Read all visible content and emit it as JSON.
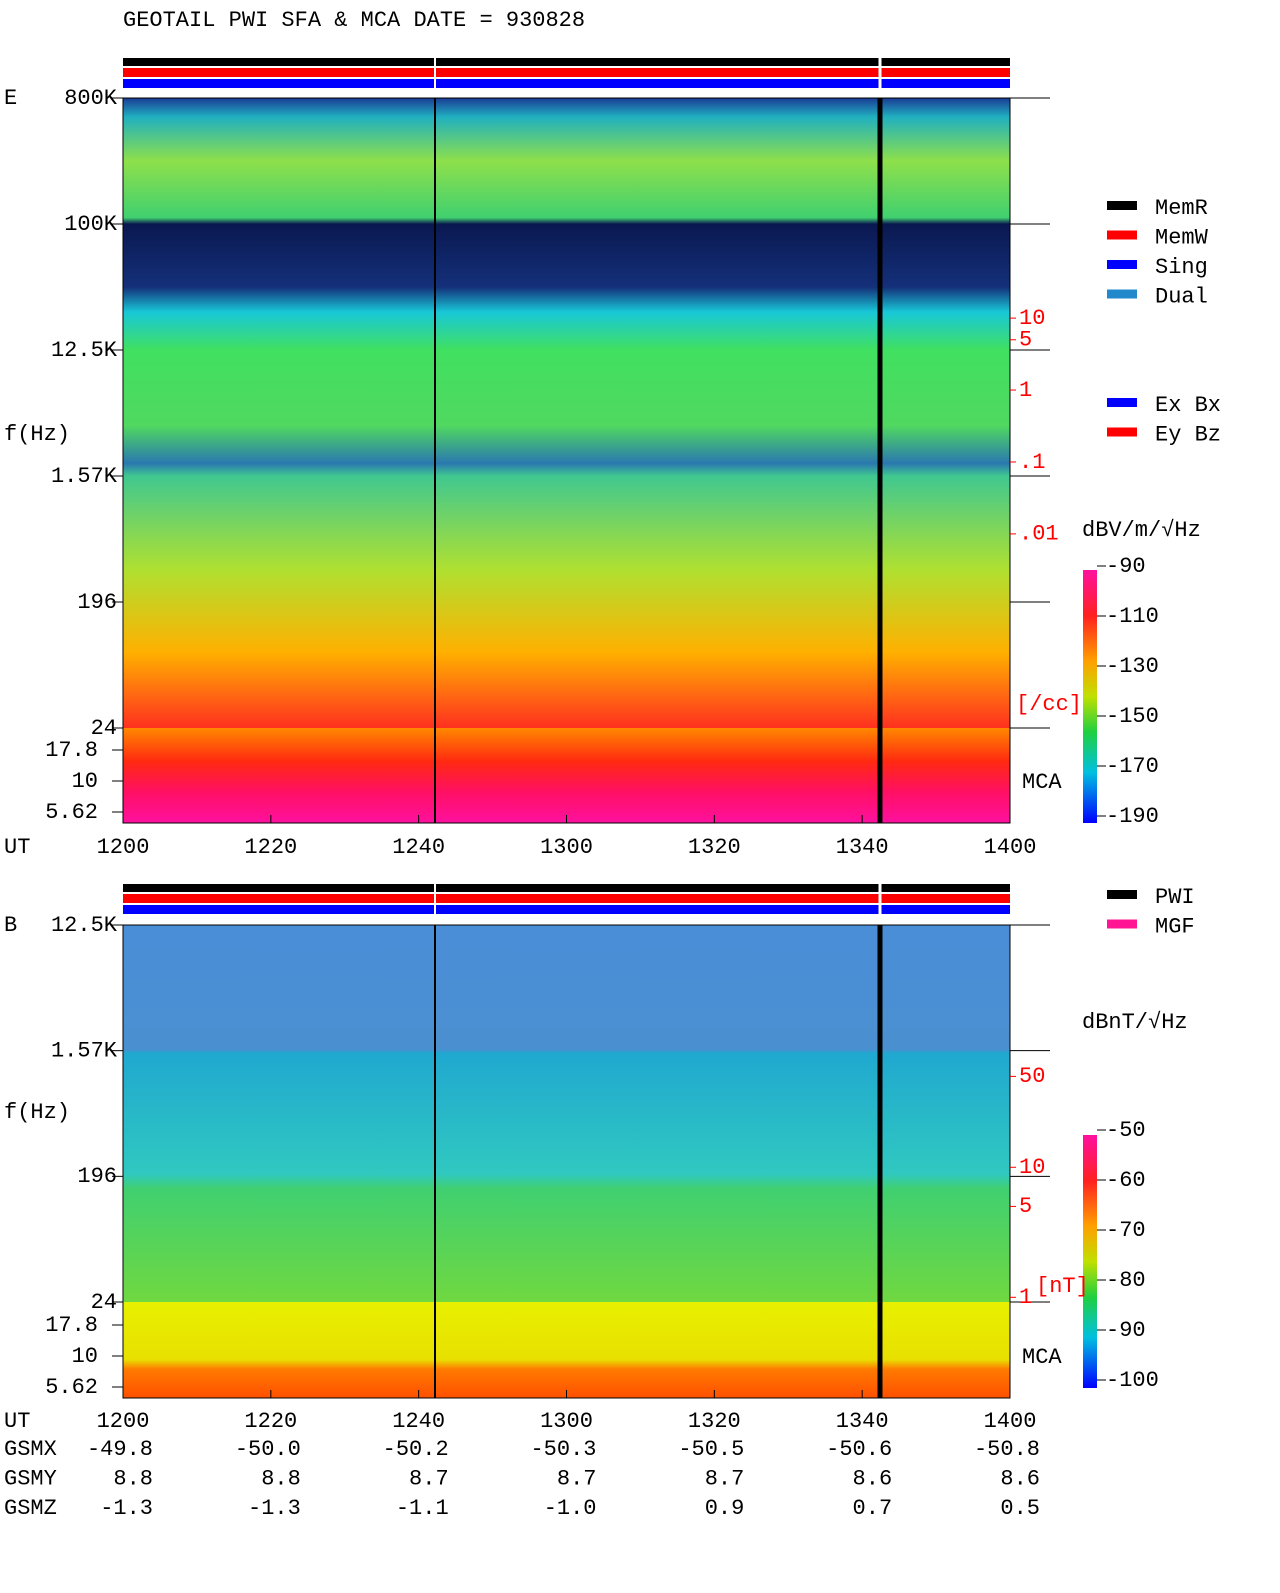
{
  "header": {
    "title": "GEOTAIL  PWI SFA & MCA   DATE = 930828"
  },
  "panels": [
    {
      "label": "E",
      "ylabel": "f(Hz)",
      "xlabel": "UT",
      "xticks": [
        "1200",
        "1220",
        "1240",
        "1300",
        "1320",
        "1340",
        "1400"
      ],
      "sfa_ticks": [
        "800K",
        "100K",
        "12.5K",
        "1.57K",
        "196",
        "24"
      ],
      "mca_ticks": [
        "17.8",
        "10",
        "5.62"
      ],
      "mca_label": "MCA",
      "density_label": "[/cc]",
      "density_scale": "log",
      "density_lim": [
        2e-05,
        11500
      ],
      "density_ticks": [
        10,
        5,
        1,
        {
          "value": 0.1,
          "label": ".1"
        },
        {
          "value": 0.01,
          "label": ".01"
        }
      ],
      "colorbar": {
        "label": "dBV/m/√Hz",
        "lim": [
          -190,
          -90
        ],
        "ticks": [
          -90,
          -110,
          -130,
          -150,
          -170,
          -190
        ]
      }
    },
    {
      "label": "B",
      "ylabel": "f(Hz)",
      "xlabel": "UT",
      "xticks": [
        "1200",
        "1220",
        "1240",
        "1300",
        "1320",
        "1340",
        "1400"
      ],
      "sfa_ticks": [
        "12.5K",
        "1.57K",
        "196",
        "24"
      ],
      "mca_ticks": [
        "17.8",
        "10",
        "5.62"
      ],
      "mca_label": "MCA",
      "density_label": "[nT]",
      "density_scale": "log",
      "density_lim": [
        0.92,
        730
      ],
      "density_ticks": [
        50,
        10,
        5,
        1
      ],
      "colorbar": {
        "label": "dBnT/√Hz",
        "lim": [
          -100,
          -50
        ],
        "ticks": [
          -50,
          -60,
          -70,
          -80,
          -90,
          -100
        ]
      }
    }
  ],
  "legends": [
    [
      {
        "name": "MemR",
        "color": "#000000"
      },
      {
        "name": "MemW",
        "color": "#ff0000"
      },
      {
        "name": "Sing",
        "color": "#0000ff"
      },
      {
        "name": "Dual",
        "color": "#2288cc"
      }
    ],
    [
      {
        "name": "Ex Bx",
        "color": "#0000ff"
      },
      {
        "name": "Ey Bz",
        "color": "#ff0000"
      }
    ],
    [
      {
        "name": "PWI",
        "color": "#000000"
      },
      {
        "name": "MGF",
        "color": "#ff1493"
      }
    ]
  ],
  "orbit": {
    "rows": [
      {
        "label": "GSMX",
        "values": [
          "-49.8",
          "-50.0",
          "-50.2",
          "-50.3",
          "-50.5",
          "-50.6",
          "-50.8"
        ]
      },
      {
        "label": "GSMY",
        "values": [
          "8.8",
          "8.8",
          "8.7",
          "8.7",
          "8.7",
          "8.6",
          "8.6"
        ]
      },
      {
        "label": "GSMZ",
        "values": [
          "-1.3",
          "-1.3",
          "-1.1",
          "-1.0",
          "0.9",
          "0.7",
          "0.5"
        ]
      }
    ]
  }
}
